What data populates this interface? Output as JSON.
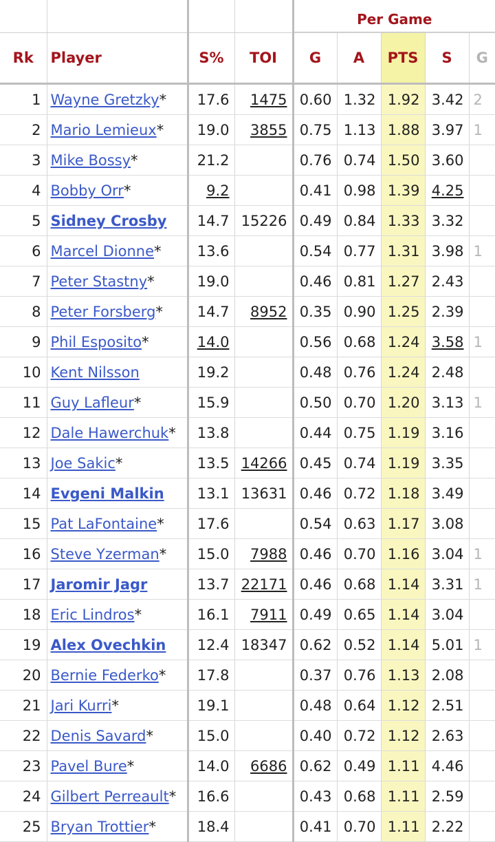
{
  "group_header": "Per Game",
  "columns": {
    "rk": "Rk",
    "player": "Player",
    "sp": "S%",
    "toi": "TOI",
    "g": "G",
    "a": "A",
    "pts": "PTS",
    "s": "S"
  },
  "rows": [
    {
      "rk": "1",
      "player": "Wayne Gretzky",
      "star": "*",
      "active": false,
      "sp": "17.6",
      "sp_u": false,
      "toi": "1475",
      "toi_u": true,
      "g": "0.60",
      "a": "1.32",
      "pts": "1.92",
      "s": "3.42",
      "s_u": false,
      "extra": "2"
    },
    {
      "rk": "2",
      "player": "Mario Lemieux",
      "star": "*",
      "active": false,
      "sp": "19.0",
      "sp_u": false,
      "toi": "3855",
      "toi_u": true,
      "g": "0.75",
      "a": "1.13",
      "pts": "1.88",
      "s": "3.97",
      "s_u": false,
      "extra": "1"
    },
    {
      "rk": "3",
      "player": "Mike Bossy",
      "star": "*",
      "active": false,
      "sp": "21.2",
      "sp_u": false,
      "toi": "",
      "toi_u": false,
      "g": "0.76",
      "a": "0.74",
      "pts": "1.50",
      "s": "3.60",
      "s_u": false,
      "extra": ""
    },
    {
      "rk": "4",
      "player": "Bobby Orr",
      "star": "*",
      "active": false,
      "sp": "9.2",
      "sp_u": true,
      "toi": "",
      "toi_u": false,
      "g": "0.41",
      "a": "0.98",
      "pts": "1.39",
      "s": "4.25",
      "s_u": true,
      "extra": ""
    },
    {
      "rk": "5",
      "player": "Sidney Crosby",
      "star": "",
      "active": true,
      "sp": "14.7",
      "sp_u": false,
      "toi": "15226",
      "toi_u": false,
      "g": "0.49",
      "a": "0.84",
      "pts": "1.33",
      "s": "3.32",
      "s_u": false,
      "extra": ""
    },
    {
      "rk": "6",
      "player": "Marcel Dionne",
      "star": "*",
      "active": false,
      "sp": "13.6",
      "sp_u": false,
      "toi": "",
      "toi_u": false,
      "g": "0.54",
      "a": "0.77",
      "pts": "1.31",
      "s": "3.98",
      "s_u": false,
      "extra": "1"
    },
    {
      "rk": "7",
      "player": "Peter Stastny",
      "star": "*",
      "active": false,
      "sp": "19.0",
      "sp_u": false,
      "toi": "",
      "toi_u": false,
      "g": "0.46",
      "a": "0.81",
      "pts": "1.27",
      "s": "2.43",
      "s_u": false,
      "extra": ""
    },
    {
      "rk": "8",
      "player": "Peter Forsberg",
      "star": "*",
      "active": false,
      "sp": "14.7",
      "sp_u": false,
      "toi": "8952",
      "toi_u": true,
      "g": "0.35",
      "a": "0.90",
      "pts": "1.25",
      "s": "2.39",
      "s_u": false,
      "extra": ""
    },
    {
      "rk": "9",
      "player": "Phil Esposito",
      "star": "*",
      "active": false,
      "sp": "14.0",
      "sp_u": true,
      "toi": "",
      "toi_u": false,
      "g": "0.56",
      "a": "0.68",
      "pts": "1.24",
      "s": "3.58",
      "s_u": true,
      "extra": "1"
    },
    {
      "rk": "10",
      "player": "Kent Nilsson",
      "star": "",
      "active": false,
      "sp": "19.2",
      "sp_u": false,
      "toi": "",
      "toi_u": false,
      "g": "0.48",
      "a": "0.76",
      "pts": "1.24",
      "s": "2.48",
      "s_u": false,
      "extra": ""
    },
    {
      "rk": "11",
      "player": "Guy Lafleur",
      "star": "*",
      "active": false,
      "sp": "15.9",
      "sp_u": false,
      "toi": "",
      "toi_u": false,
      "g": "0.50",
      "a": "0.70",
      "pts": "1.20",
      "s": "3.13",
      "s_u": false,
      "extra": "1"
    },
    {
      "rk": "12",
      "player": "Dale Hawerchuk",
      "star": "*",
      "active": false,
      "sp": "13.8",
      "sp_u": false,
      "toi": "",
      "toi_u": false,
      "g": "0.44",
      "a": "0.75",
      "pts": "1.19",
      "s": "3.16",
      "s_u": false,
      "extra": ""
    },
    {
      "rk": "13",
      "player": "Joe Sakic",
      "star": "*",
      "active": false,
      "sp": "13.5",
      "sp_u": false,
      "toi": "14266",
      "toi_u": true,
      "g": "0.45",
      "a": "0.74",
      "pts": "1.19",
      "s": "3.35",
      "s_u": false,
      "extra": ""
    },
    {
      "rk": "14",
      "player": "Evgeni Malkin",
      "star": "",
      "active": true,
      "sp": "13.1",
      "sp_u": false,
      "toi": "13631",
      "toi_u": false,
      "g": "0.46",
      "a": "0.72",
      "pts": "1.18",
      "s": "3.49",
      "s_u": false,
      "extra": ""
    },
    {
      "rk": "15",
      "player": "Pat LaFontaine",
      "star": "*",
      "active": false,
      "sp": "17.6",
      "sp_u": false,
      "toi": "",
      "toi_u": false,
      "g": "0.54",
      "a": "0.63",
      "pts": "1.17",
      "s": "3.08",
      "s_u": false,
      "extra": ""
    },
    {
      "rk": "16",
      "player": "Steve Yzerman",
      "star": "*",
      "active": false,
      "sp": "15.0",
      "sp_u": false,
      "toi": "7988",
      "toi_u": true,
      "g": "0.46",
      "a": "0.70",
      "pts": "1.16",
      "s": "3.04",
      "s_u": false,
      "extra": "1"
    },
    {
      "rk": "17",
      "player": "Jaromir Jagr",
      "star": "",
      "active": true,
      "sp": "13.7",
      "sp_u": false,
      "toi": "22171",
      "toi_u": true,
      "g": "0.46",
      "a": "0.68",
      "pts": "1.14",
      "s": "3.31",
      "s_u": false,
      "extra": "1"
    },
    {
      "rk": "18",
      "player": "Eric Lindros",
      "star": "*",
      "active": false,
      "sp": "16.1",
      "sp_u": false,
      "toi": "7911",
      "toi_u": true,
      "g": "0.49",
      "a": "0.65",
      "pts": "1.14",
      "s": "3.04",
      "s_u": false,
      "extra": ""
    },
    {
      "rk": "19",
      "player": "Alex Ovechkin",
      "star": "",
      "active": true,
      "sp": "12.4",
      "sp_u": false,
      "toi": "18347",
      "toi_u": false,
      "g": "0.62",
      "a": "0.52",
      "pts": "1.14",
      "s": "5.01",
      "s_u": false,
      "extra": "1"
    },
    {
      "rk": "20",
      "player": "Bernie Federko",
      "star": "*",
      "active": false,
      "sp": "17.8",
      "sp_u": false,
      "toi": "",
      "toi_u": false,
      "g": "0.37",
      "a": "0.76",
      "pts": "1.13",
      "s": "2.08",
      "s_u": false,
      "extra": ""
    },
    {
      "rk": "21",
      "player": "Jari Kurri",
      "star": "*",
      "active": false,
      "sp": "19.1",
      "sp_u": false,
      "toi": "",
      "toi_u": false,
      "g": "0.48",
      "a": "0.64",
      "pts": "1.12",
      "s": "2.51",
      "s_u": false,
      "extra": ""
    },
    {
      "rk": "22",
      "player": "Denis Savard",
      "star": "*",
      "active": false,
      "sp": "15.0",
      "sp_u": false,
      "toi": "",
      "toi_u": false,
      "g": "0.40",
      "a": "0.72",
      "pts": "1.12",
      "s": "2.63",
      "s_u": false,
      "extra": ""
    },
    {
      "rk": "23",
      "player": "Pavel Bure",
      "star": "*",
      "active": false,
      "sp": "14.0",
      "sp_u": false,
      "toi": "6686",
      "toi_u": true,
      "g": "0.62",
      "a": "0.49",
      "pts": "1.11",
      "s": "4.46",
      "s_u": false,
      "extra": ""
    },
    {
      "rk": "24",
      "player": "Gilbert Perreault",
      "star": "*",
      "active": false,
      "sp": "16.6",
      "sp_u": false,
      "toi": "",
      "toi_u": false,
      "g": "0.43",
      "a": "0.68",
      "pts": "1.11",
      "s": "2.59",
      "s_u": false,
      "extra": ""
    },
    {
      "rk": "25",
      "player": "Bryan Trottier",
      "star": "*",
      "active": false,
      "sp": "18.4",
      "sp_u": false,
      "toi": "",
      "toi_u": false,
      "g": "0.41",
      "a": "0.70",
      "pts": "1.11",
      "s": "2.22",
      "s_u": false,
      "extra": ""
    }
  ],
  "colors": {
    "header_text": "#a3151c",
    "link": "#3a59c8",
    "sorted_column": "#f9f7bf",
    "sorted_header": "#f5f3a6"
  }
}
